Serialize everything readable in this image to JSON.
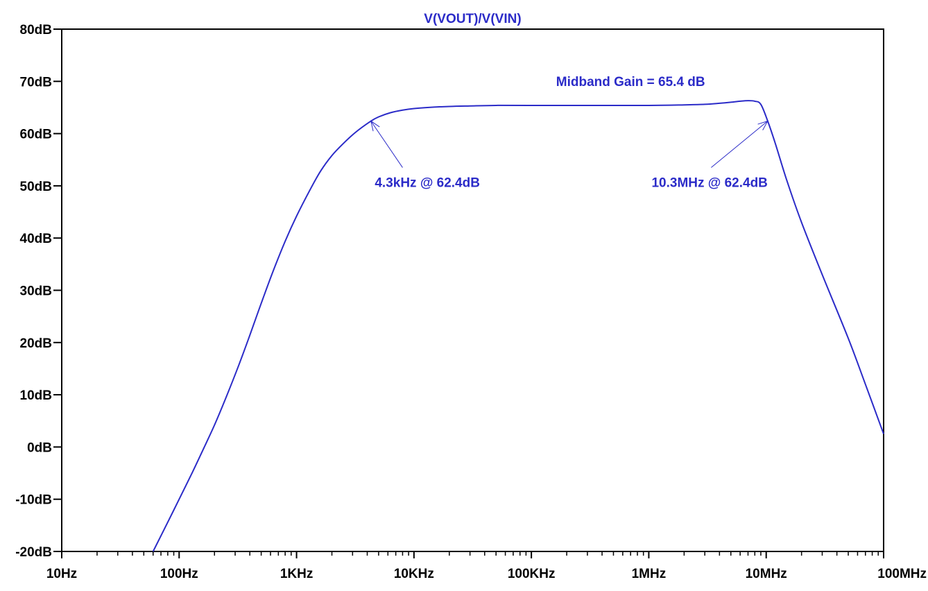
{
  "chart_data": {
    "type": "line",
    "title": "V(VOUT)/V(VIN)",
    "xscale": "log",
    "xlabel": "",
    "ylabel": "",
    "xlim": [
      10,
      100000000
    ],
    "ylim": [
      -20,
      80
    ],
    "grid": false,
    "x_ticks": [
      {
        "value": 10,
        "label": "10Hz"
      },
      {
        "value": 100,
        "label": "100Hz"
      },
      {
        "value": 1000,
        "label": "1KHz"
      },
      {
        "value": 10000,
        "label": "10KHz"
      },
      {
        "value": 100000,
        "label": "100KHz"
      },
      {
        "value": 1000000,
        "label": "1MHz"
      },
      {
        "value": 10000000,
        "label": "10MHz"
      },
      {
        "value": 100000000,
        "label": "100MHz"
      }
    ],
    "y_ticks": [
      {
        "value": 80,
        "label": "80dB"
      },
      {
        "value": 70,
        "label": "70dB"
      },
      {
        "value": 60,
        "label": "60dB"
      },
      {
        "value": 50,
        "label": "50dB"
      },
      {
        "value": 40,
        "label": "40dB"
      },
      {
        "value": 30,
        "label": "30dB"
      },
      {
        "value": 20,
        "label": "20dB"
      },
      {
        "value": 10,
        "label": "10dB"
      },
      {
        "value": 0,
        "label": "0dB"
      },
      {
        "value": -10,
        "label": "-10dB"
      },
      {
        "value": -20,
        "label": "-20dB"
      }
    ],
    "series": [
      {
        "color": "#2b2bc8",
        "x": [
          60,
          80,
          100,
          130,
          160,
          200,
          250,
          320,
          400,
          500,
          630,
          800,
          1000,
          1300,
          1600,
          2000,
          2500,
          3200,
          4300,
          5000,
          6300,
          8000,
          10000,
          13000,
          20000,
          30000,
          50000,
          100000,
          300000,
          1000000,
          2000000,
          3000000,
          4000000,
          5000000,
          6000000,
          7000000,
          8000000,
          9000000,
          10300000,
          12000000,
          15000000,
          20000000,
          30000000,
          50000000,
          70000000,
          100000000
        ],
        "values": [
          -20,
          -14.4,
          -10,
          -4.8,
          -0.5,
          4.2,
          9.4,
          15.5,
          21.4,
          27.5,
          33.6,
          39.4,
          44.2,
          49.2,
          52.8,
          55.8,
          58.1,
          60.3,
          62.4,
          63.2,
          64.0,
          64.5,
          64.8,
          65.0,
          65.2,
          65.3,
          65.4,
          65.4,
          65.4,
          65.4,
          65.5,
          65.6,
          65.8,
          66.0,
          66.2,
          66.3,
          66.2,
          65.6,
          62.4,
          58.0,
          51.0,
          43.0,
          33.0,
          20.8,
          12.0,
          2.5
        ]
      }
    ],
    "annotations": [
      {
        "text": "Midband Gain = 65.4 dB",
        "x": 700000,
        "y": 69.1
      },
      {
        "text": "4.3kHz @ 62.4dB",
        "x": 13000,
        "y": 49.8,
        "arrow_to": {
          "x": 4300,
          "y": 62.4
        },
        "arrow_from": {
          "x": 8000,
          "y": 53.5
        }
      },
      {
        "text": "10.3MHz @ 62.4dB",
        "x": 3300000,
        "y": 49.8,
        "arrow_to": {
          "x": 10300000,
          "y": 62.4
        },
        "arrow_from": {
          "x": 3400000,
          "y": 53.5
        }
      }
    ],
    "colors": {
      "trace": "#2b2bc8",
      "text": "#2b2bc8",
      "axis": "#000000"
    }
  }
}
